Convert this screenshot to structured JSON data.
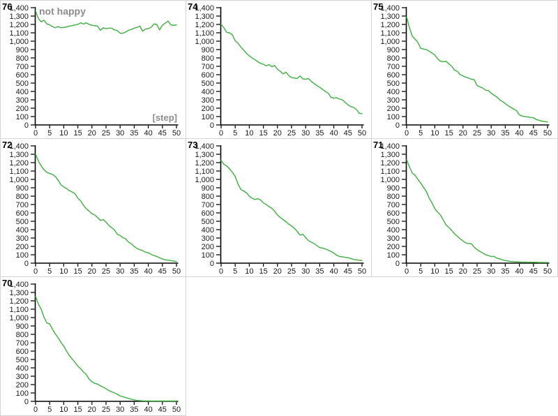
{
  "window": {
    "background": "#ffffff",
    "panel_border_color": "#d4d4d4"
  },
  "colors": {
    "line": "#4bb24e",
    "axis": "#000000",
    "tick_label": "#1a1a1a",
    "run_label": "#000000",
    "annotation": "#8c8c8c"
  },
  "grid": {
    "columns": 3,
    "rows": 3,
    "order": [
      "76",
      "74",
      "75",
      "72",
      "73",
      "71",
      "70"
    ]
  },
  "axes": {
    "x": {
      "min": 0,
      "max": 50,
      "tick_step": 5,
      "tick_labels": [
        "0",
        "5",
        "10",
        "15",
        "20",
        "25",
        "30",
        "35",
        "40",
        "45",
        "50"
      ]
    },
    "y": {
      "min": 0,
      "max": 1400,
      "tick_step": 100,
      "tick_labels": [
        "0",
        "100",
        "200",
        "300",
        "400",
        "500",
        "600",
        "700",
        "800",
        "900",
        "1,000",
        "1,100",
        "1,200",
        "1,300",
        "1,400"
      ]
    }
  },
  "annotations": {
    "series_label": "not happy",
    "x_axis_label": "[step]"
  },
  "chart_data": [
    {
      "type": "line",
      "title": "76",
      "xlabel": "[step]",
      "ylabel": "not happy",
      "xlim": [
        0,
        50
      ],
      "ylim": [
        0,
        1400
      ],
      "x_start": 0,
      "x_step": 1,
      "show_annotations": true,
      "y": [
        1360,
        1270,
        1230,
        1250,
        1205,
        1195,
        1175,
        1160,
        1175,
        1160,
        1165,
        1170,
        1180,
        1185,
        1195,
        1200,
        1220,
        1205,
        1220,
        1200,
        1190,
        1185,
        1180,
        1130,
        1160,
        1150,
        1155,
        1155,
        1135,
        1125,
        1095,
        1095,
        1110,
        1130,
        1140,
        1155,
        1165,
        1180,
        1120,
        1145,
        1150,
        1165,
        1205,
        1200,
        1135,
        1190,
        1215,
        1240,
        1195,
        1190,
        1195
      ]
    },
    {
      "type": "line",
      "title": "74",
      "xlim": [
        0,
        50
      ],
      "ylim": [
        0,
        1400
      ],
      "x_start": 0,
      "x_step": 1,
      "show_annotations": false,
      "y": [
        1200,
        1160,
        1105,
        1100,
        1075,
        1005,
        975,
        930,
        895,
        855,
        825,
        800,
        780,
        755,
        735,
        725,
        705,
        720,
        695,
        710,
        665,
        640,
        610,
        630,
        590,
        565,
        560,
        555,
        585,
        550,
        545,
        555,
        520,
        495,
        470,
        450,
        425,
        400,
        380,
        330,
        320,
        325,
        310,
        300,
        270,
        240,
        220,
        210,
        185,
        140,
        135
      ]
    },
    {
      "type": "line",
      "title": "75",
      "xlim": [
        0,
        50
      ],
      "ylim": [
        0,
        1400
      ],
      "x_start": 0,
      "x_step": 1,
      "show_annotations": false,
      "y": [
        1290,
        1160,
        1060,
        1025,
        985,
        915,
        905,
        900,
        880,
        860,
        835,
        790,
        760,
        755,
        760,
        730,
        700,
        655,
        640,
        600,
        585,
        570,
        560,
        545,
        540,
        470,
        455,
        440,
        415,
        410,
        380,
        355,
        335,
        300,
        280,
        255,
        230,
        210,
        190,
        170,
        120,
        105,
        100,
        95,
        90,
        85,
        65,
        55,
        45,
        40,
        35
      ]
    },
    {
      "type": "line",
      "title": "72",
      "xlim": [
        0,
        50
      ],
      "ylim": [
        0,
        1400
      ],
      "x_start": 0,
      "x_step": 1,
      "show_annotations": false,
      "y": [
        1300,
        1220,
        1160,
        1115,
        1085,
        1070,
        1060,
        1035,
        990,
        935,
        910,
        890,
        865,
        850,
        830,
        775,
        745,
        690,
        650,
        620,
        590,
        575,
        545,
        510,
        520,
        490,
        450,
        425,
        395,
        345,
        330,
        305,
        290,
        250,
        230,
        200,
        175,
        160,
        150,
        130,
        125,
        105,
        90,
        80,
        65,
        50,
        40,
        35,
        30,
        25,
        20
      ]
    },
    {
      "type": "line",
      "title": "73",
      "xlim": [
        0,
        50
      ],
      "ylim": [
        0,
        1400
      ],
      "x_start": 0,
      "x_step": 1,
      "show_annotations": false,
      "y": [
        1225,
        1180,
        1160,
        1125,
        1085,
        1035,
        945,
        880,
        860,
        840,
        800,
        775,
        760,
        770,
        755,
        720,
        700,
        675,
        655,
        620,
        575,
        545,
        520,
        495,
        465,
        445,
        415,
        380,
        335,
        345,
        305,
        270,
        250,
        235,
        210,
        185,
        180,
        170,
        155,
        140,
        120,
        95,
        80,
        75,
        70,
        65,
        55,
        45,
        40,
        35,
        30
      ]
    },
    {
      "type": "line",
      "title": "71",
      "xlim": [
        0,
        50
      ],
      "ylim": [
        0,
        1400
      ],
      "x_start": 0,
      "x_step": 1,
      "show_annotations": false,
      "y": [
        1235,
        1150,
        1075,
        1050,
        1000,
        955,
        905,
        855,
        775,
        720,
        650,
        610,
        575,
        515,
        455,
        425,
        390,
        350,
        320,
        290,
        265,
        240,
        235,
        230,
        190,
        160,
        140,
        120,
        100,
        90,
        80,
        80,
        60,
        50,
        40,
        30,
        25,
        20,
        18,
        15,
        15,
        12,
        12,
        10,
        10,
        10,
        10,
        8,
        8,
        8,
        8
      ]
    },
    {
      "type": "line",
      "title": "70",
      "xlim": [
        0,
        50
      ],
      "ylim": [
        0,
        1400
      ],
      "x_start": 0,
      "x_step": 1,
      "show_annotations": false,
      "y": [
        1255,
        1160,
        1100,
        1005,
        935,
        925,
        860,
        805,
        760,
        705,
        660,
        600,
        545,
        505,
        465,
        420,
        390,
        350,
        320,
        265,
        235,
        215,
        205,
        185,
        170,
        150,
        130,
        115,
        100,
        85,
        65,
        55,
        45,
        35,
        25,
        18,
        10,
        8,
        6,
        5,
        5,
        4,
        4,
        4,
        4,
        4,
        4,
        4,
        4,
        4,
        4
      ]
    }
  ]
}
